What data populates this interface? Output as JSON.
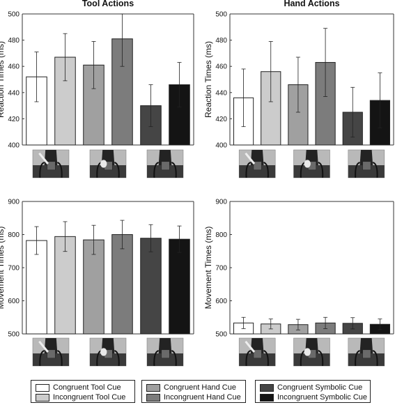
{
  "figure": {
    "legend": [
      {
        "label": "Congruent Tool Cue",
        "color": "#ffffff"
      },
      {
        "label": "Incongruent Tool Cue",
        "color": "#cccccc"
      },
      {
        "label": "Congruent Hand Cue",
        "color": "#a0a0a0"
      },
      {
        "label": "Incongruent Hand Cue",
        "color": "#7c7c7c"
      },
      {
        "label": "Congruent Symbolic Cue",
        "color": "#454545"
      },
      {
        "label": "Incongruent Symbolic Cue",
        "color": "#141414"
      }
    ],
    "cue_images": [
      "tool-cue-photo",
      "hand-cue-photo",
      "symbolic-cue-photo"
    ]
  },
  "chart_data": [
    {
      "type": "bar",
      "title": "Tool Actions",
      "xlabel": "",
      "ylabel": "Reaction Times (ms)",
      "ylim": [
        400,
        500
      ],
      "yticks": [
        400,
        420,
        440,
        460,
        480,
        500
      ],
      "categories": [
        "Congruent Tool Cue",
        "Incongruent Tool Cue",
        "Congruent Hand Cue",
        "Incongruent Hand Cue",
        "Congruent Symbolic Cue",
        "Incongruent Symbolic Cue"
      ],
      "values": [
        452,
        467,
        461,
        481,
        430,
        446
      ],
      "errors": [
        19,
        18,
        18,
        21,
        16,
        17
      ]
    },
    {
      "type": "bar",
      "title": "Hand Actions",
      "xlabel": "",
      "ylabel": "Reaction Times (ms)",
      "ylim": [
        400,
        500
      ],
      "yticks": [
        400,
        420,
        440,
        460,
        480,
        500
      ],
      "categories": [
        "Congruent Tool Cue",
        "Incongruent Tool Cue",
        "Congruent Hand Cue",
        "Incongruent Hand Cue",
        "Congruent Symbolic Cue",
        "Incongruent Symbolic Cue"
      ],
      "values": [
        436,
        456,
        446,
        463,
        425,
        434
      ],
      "errors": [
        22,
        23,
        21,
        26,
        19,
        21
      ]
    },
    {
      "type": "bar",
      "title": "",
      "xlabel": "",
      "ylabel": "Movement Times (ms)",
      "ylim": [
        500,
        900
      ],
      "yticks": [
        500,
        600,
        700,
        800,
        900
      ],
      "categories": [
        "Congruent Tool Cue",
        "Incongruent Tool Cue",
        "Congruent Hand Cue",
        "Incongruent Hand Cue",
        "Congruent Symbolic Cue",
        "Incongruent Symbolic Cue"
      ],
      "values": [
        782,
        794,
        784,
        800,
        789,
        786
      ],
      "errors": [
        42,
        45,
        44,
        43,
        41,
        40
      ]
    },
    {
      "type": "bar",
      "title": "",
      "xlabel": "",
      "ylabel": "Movement Times (ms)",
      "ylim": [
        500,
        900
      ],
      "yticks": [
        500,
        600,
        700,
        800,
        900
      ],
      "categories": [
        "Congruent Tool Cue",
        "Incongruent Tool Cue",
        "Congruent Hand Cue",
        "Incongruent Hand Cue",
        "Congruent Symbolic Cue",
        "Incongruent Symbolic Cue"
      ],
      "values": [
        533,
        530,
        528,
        533,
        532,
        529
      ],
      "errors": [
        17,
        15,
        16,
        17,
        17,
        16
      ]
    }
  ]
}
